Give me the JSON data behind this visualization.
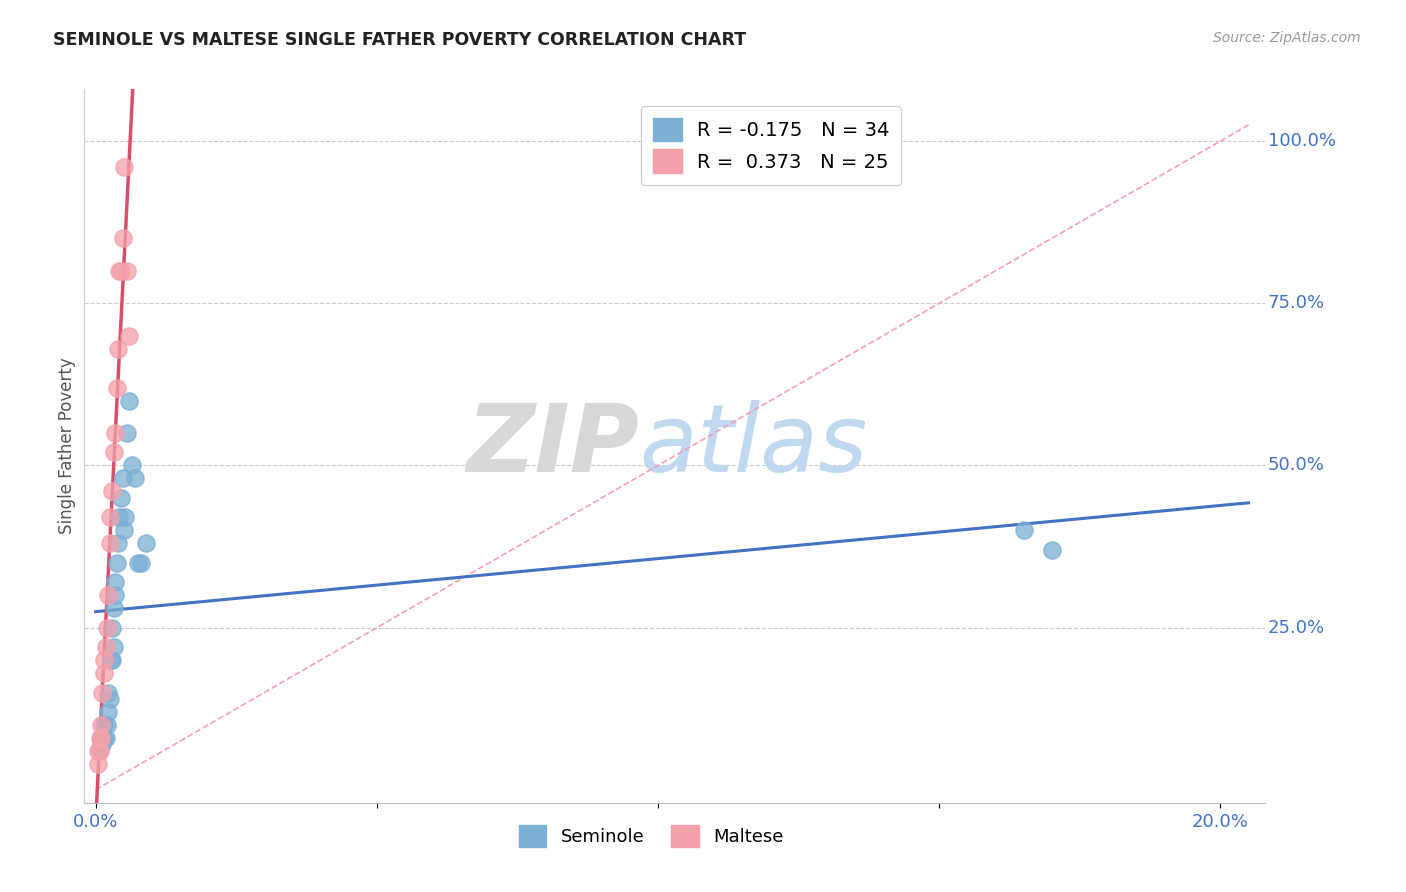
{
  "title": "SEMINOLE VS MALTESE SINGLE FATHER POVERTY CORRELATION CHART",
  "source": "Source: ZipAtlas.com",
  "ylabel_text": "Single Father Poverty",
  "y_tick_labels_right": [
    "100.0%",
    "75.0%",
    "50.0%",
    "25.0%"
  ],
  "y_ticks_right": [
    1.0,
    0.75,
    0.5,
    0.25
  ],
  "legend_blue_r": "R = -0.175",
  "legend_blue_n": "N = 34",
  "legend_pink_r": "R =  0.373",
  "legend_pink_n": "N = 25",
  "legend_seminole": "Seminole",
  "legend_maltese": "Maltese",
  "blue_color": "#7BAFD4",
  "pink_color": "#F4A0A8",
  "blue_line_color": "#4472C4",
  "pink_line_color": "#D94F6B",
  "diag_line_color": "#F4A0B8",
  "background_color": "#FFFFFF",
  "watermark_zip": "ZIP",
  "watermark_atlas": "atlas",
  "watermark_color_zip": "#D8D8D8",
  "watermark_color_atlas": "#C0D8F0",
  "seminole_x": [
    0.0008,
    0.001,
    0.001,
    0.0012,
    0.0015,
    0.0015,
    0.0018,
    0.002,
    0.0022,
    0.0022,
    0.0025,
    0.0028,
    0.003,
    0.003,
    0.0032,
    0.0032,
    0.0035,
    0.0035,
    0.0038,
    0.004,
    0.0042,
    0.0045,
    0.0048,
    0.005,
    0.0052,
    0.0055,
    0.006,
    0.0065,
    0.007,
    0.0075,
    0.008,
    0.009,
    0.165,
    0.17
  ],
  "seminole_y": [
    0.065,
    0.075,
    0.08,
    0.07,
    0.08,
    0.1,
    0.08,
    0.1,
    0.12,
    0.15,
    0.14,
    0.2,
    0.2,
    0.25,
    0.22,
    0.28,
    0.3,
    0.32,
    0.35,
    0.38,
    0.42,
    0.45,
    0.48,
    0.4,
    0.42,
    0.55,
    0.6,
    0.5,
    0.48,
    0.35,
    0.35,
    0.38,
    0.4,
    0.37
  ],
  "maltese_x": [
    0.0005,
    0.0005,
    0.0008,
    0.0008,
    0.001,
    0.001,
    0.0012,
    0.0015,
    0.0015,
    0.0018,
    0.002,
    0.0022,
    0.0025,
    0.0025,
    0.003,
    0.0032,
    0.0035,
    0.0038,
    0.004,
    0.0042,
    0.0045,
    0.0048,
    0.005,
    0.0055,
    0.006
  ],
  "maltese_y": [
    0.04,
    0.06,
    0.06,
    0.08,
    0.08,
    0.1,
    0.15,
    0.18,
    0.2,
    0.22,
    0.25,
    0.3,
    0.38,
    0.42,
    0.46,
    0.52,
    0.55,
    0.62,
    0.68,
    0.8,
    0.8,
    0.85,
    0.96,
    0.8,
    0.7
  ],
  "xlim": [
    -0.002,
    0.208
  ],
  "ylim": [
    -0.02,
    1.08
  ]
}
